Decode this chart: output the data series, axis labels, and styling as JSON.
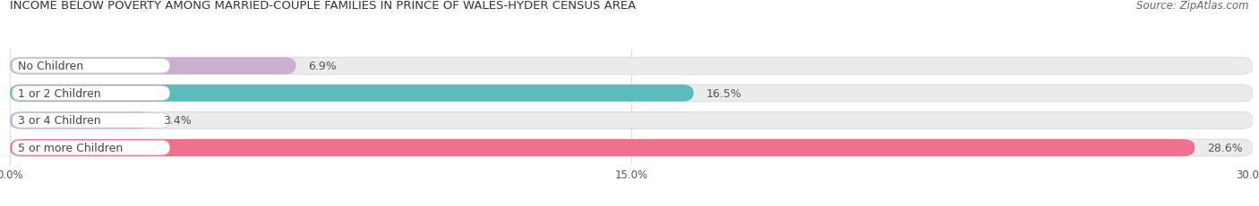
{
  "title": "INCOME BELOW POVERTY AMONG MARRIED-COUPLE FAMILIES IN PRINCE OF WALES-HYDER CENSUS AREA",
  "source": "Source: ZipAtlas.com",
  "categories": [
    "No Children",
    "1 or 2 Children",
    "3 or 4 Children",
    "5 or more Children"
  ],
  "values": [
    6.9,
    16.5,
    3.4,
    28.6
  ],
  "bar_colors": [
    "#c9afd0",
    "#5bbcbc",
    "#aab2d8",
    "#f07090"
  ],
  "bar_bg_color": "#ebebeb",
  "xlim": [
    0,
    30.0
  ],
  "xticks": [
    0.0,
    15.0,
    30.0
  ],
  "xtick_labels": [
    "0.0%",
    "15.0%",
    "30.0%"
  ],
  "title_fontsize": 9.5,
  "source_fontsize": 8.5,
  "label_fontsize": 9,
  "value_fontsize": 9,
  "bg_color": "#ffffff",
  "bar_height": 0.62,
  "label_text_color": "#444444",
  "value_label_color": "#555555",
  "grid_color": "#cccccc"
}
